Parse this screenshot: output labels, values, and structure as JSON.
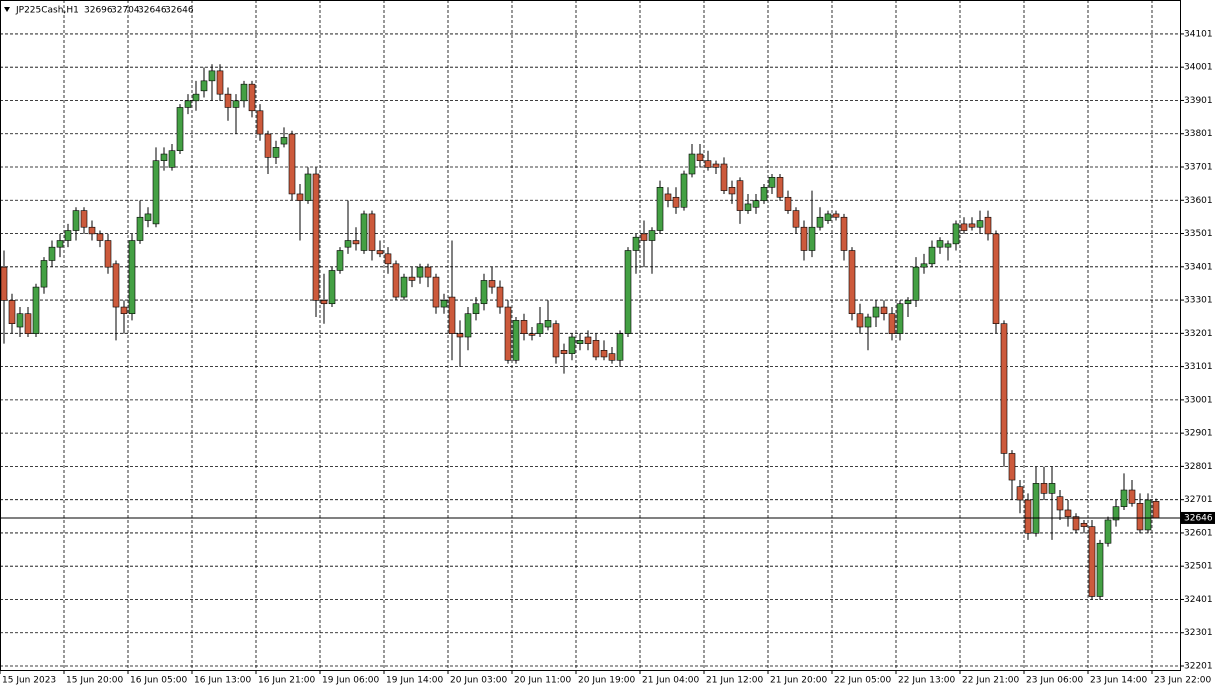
{
  "chart_data": {
    "type": "candlestick",
    "symbol": "JP225Cash,H1",
    "up_color": "#44a044",
    "down_color": "#cc5a3c",
    "wick_color": "#000000",
    "grid": true,
    "ylim": [
      32189,
      34203
    ],
    "yticks": [
      32201,
      32301,
      32401,
      32501,
      32601,
      32701,
      32801,
      32901,
      33001,
      33101,
      33201,
      33301,
      33401,
      33501,
      33601,
      33701,
      33801,
      33901,
      34001,
      34101
    ],
    "xticks": [
      {
        "value": 0,
        "label": "15 Jun 2023"
      },
      {
        "value": 8,
        "label": "15 Jun 20:00"
      },
      {
        "value": 16,
        "label": "16 Jun 05:00"
      },
      {
        "value": 24,
        "label": "16 Jun 13:00"
      },
      {
        "value": 32,
        "label": "16 Jun 21:00"
      },
      {
        "value": 40,
        "label": "19 Jun 06:00"
      },
      {
        "value": 48,
        "label": "19 Jun 14:00"
      },
      {
        "value": 56,
        "label": "20 Jun 03:00"
      },
      {
        "value": 64,
        "label": "20 Jun 11:00"
      },
      {
        "value": 72,
        "label": "20 Jun 19:00"
      },
      {
        "value": 80,
        "label": "21 Jun 04:00"
      },
      {
        "value": 88,
        "label": "21 Jun 12:00"
      },
      {
        "value": 96,
        "label": "21 Jun 20:00"
      },
      {
        "value": 104,
        "label": "22 Jun 05:00"
      },
      {
        "value": 112,
        "label": "22 Jun 13:00"
      },
      {
        "value": 120,
        "label": "22 Jun 21:00"
      },
      {
        "value": 128,
        "label": "23 Jun 06:00"
      },
      {
        "value": 136,
        "label": "23 Jun 14:00"
      },
      {
        "value": 144,
        "label": "23 Jun 22:00"
      }
    ],
    "candles": [
      [
        33400,
        33450,
        33170,
        33300
      ],
      [
        33300,
        33320,
        33200,
        33230
      ],
      [
        33220,
        33280,
        33190,
        33260
      ],
      [
        33260,
        33280,
        33190,
        33200
      ],
      [
        33200,
        33350,
        33190,
        33340
      ],
      [
        33340,
        33430,
        33320,
        33420
      ],
      [
        33420,
        33480,
        33400,
        33460
      ],
      [
        33460,
        33500,
        33430,
        33480
      ],
      [
        33480,
        33530,
        33460,
        33510
      ],
      [
        33510,
        33580,
        33480,
        33570
      ],
      [
        33570,
        33580,
        33500,
        33520
      ],
      [
        33520,
        33540,
        33480,
        33500
      ],
      [
        33500,
        33510,
        33460,
        33480
      ],
      [
        33480,
        33500,
        33380,
        33400
      ],
      [
        33410,
        33420,
        33180,
        33280
      ],
      [
        33280,
        33300,
        33200,
        33260
      ],
      [
        33260,
        33500,
        33240,
        33480
      ],
      [
        33480,
        33600,
        33470,
        33550
      ],
      [
        33540,
        33580,
        33520,
        33560
      ],
      [
        33530,
        33760,
        33520,
        33720
      ],
      [
        33720,
        33760,
        33690,
        33740
      ],
      [
        33700,
        33770,
        33690,
        33750
      ],
      [
        33750,
        33890,
        33740,
        33880
      ],
      [
        33880,
        33920,
        33860,
        33900
      ],
      [
        33900,
        33960,
        33870,
        33920
      ],
      [
        33930,
        34000,
        33910,
        33960
      ],
      [
        33960,
        34010,
        33900,
        33990
      ],
      [
        33990,
        34010,
        33900,
        33920
      ],
      [
        33920,
        33940,
        33840,
        33880
      ],
      [
        33880,
        33920,
        33800,
        33900
      ],
      [
        33900,
        33960,
        33880,
        33950
      ],
      [
        33950,
        33960,
        33850,
        33870
      ],
      [
        33870,
        33890,
        33780,
        33800
      ],
      [
        33800,
        33810,
        33680,
        33730
      ],
      [
        33730,
        33780,
        33710,
        33760
      ],
      [
        33770,
        33820,
        33760,
        33790
      ],
      [
        33800,
        33810,
        33600,
        33620
      ],
      [
        33620,
        33650,
        33480,
        33600
      ],
      [
        33600,
        33700,
        33590,
        33680
      ],
      [
        33680,
        33700,
        33250,
        33300
      ],
      [
        33300,
        33380,
        33230,
        33290
      ],
      [
        33290,
        33400,
        33280,
        33390
      ],
      [
        33390,
        33460,
        33380,
        33450
      ],
      [
        33460,
        33600,
        33440,
        33480
      ],
      [
        33480,
        33520,
        33450,
        33470
      ],
      [
        33450,
        33570,
        33440,
        33560
      ],
      [
        33560,
        33570,
        33420,
        33450
      ],
      [
        33450,
        33480,
        33430,
        33440
      ],
      [
        33440,
        33460,
        33380,
        33410
      ],
      [
        33410,
        33420,
        33300,
        33310
      ],
      [
        33310,
        33380,
        33300,
        33370
      ],
      [
        33370,
        33400,
        33340,
        33360
      ],
      [
        33370,
        33410,
        33350,
        33400
      ],
      [
        33400,
        33410,
        33340,
        33370
      ],
      [
        33370,
        33380,
        33260,
        33280
      ],
      [
        33280,
        33320,
        33260,
        33300
      ],
      [
        33310,
        33480,
        33120,
        33200
      ],
      [
        33200,
        33240,
        33100,
        33190
      ],
      [
        33190,
        33280,
        33150,
        33260
      ],
      [
        33260,
        33310,
        33240,
        33290
      ],
      [
        33290,
        33380,
        33270,
        33360
      ],
      [
        33360,
        33400,
        33320,
        33340
      ],
      [
        33340,
        33360,
        33260,
        33280
      ],
      [
        33280,
        33300,
        33110,
        33120
      ],
      [
        33120,
        33250,
        33110,
        33240
      ],
      [
        33240,
        33260,
        33180,
        33200
      ],
      [
        33200,
        33220,
        33180,
        33195
      ],
      [
        33200,
        33280,
        33190,
        33230
      ],
      [
        33220,
        33300,
        33210,
        33240
      ],
      [
        33230,
        33240,
        33110,
        33130
      ],
      [
        33150,
        33170,
        33080,
        33140
      ],
      [
        33140,
        33200,
        33120,
        33190
      ],
      [
        33170,
        33200,
        33150,
        33180
      ],
      [
        33190,
        33210,
        33150,
        33170
      ],
      [
        33180,
        33200,
        33120,
        33130
      ],
      [
        33150,
        33180,
        33120,
        33130
      ],
      [
        33140,
        33160,
        33110,
        33120
      ],
      [
        33120,
        33210,
        33100,
        33200
      ],
      [
        33200,
        33460,
        33190,
        33450
      ],
      [
        33450,
        33500,
        33380,
        33490
      ],
      [
        33500,
        33540,
        33400,
        33480
      ],
      [
        33480,
        33520,
        33380,
        33510
      ],
      [
        33510,
        33660,
        33500,
        33640
      ],
      [
        33620,
        33640,
        33580,
        33600
      ],
      [
        33610,
        33640,
        33560,
        33580
      ],
      [
        33580,
        33690,
        33570,
        33680
      ],
      [
        33680,
        33770,
        33670,
        33740
      ],
      [
        33740,
        33770,
        33700,
        33720
      ],
      [
        33720,
        33750,
        33690,
        33700
      ],
      [
        33710,
        33720,
        33680,
        33700
      ],
      [
        33710,
        33730,
        33620,
        33630
      ],
      [
        33640,
        33660,
        33590,
        33620
      ],
      [
        33660,
        33670,
        33530,
        33570
      ],
      [
        33570,
        33620,
        33560,
        33590
      ],
      [
        33580,
        33620,
        33560,
        33600
      ],
      [
        33600,
        33650,
        33590,
        33640
      ],
      [
        33640,
        33680,
        33620,
        33670
      ],
      [
        33670,
        33680,
        33600,
        33610
      ],
      [
        33610,
        33630,
        33560,
        33570
      ],
      [
        33570,
        33580,
        33500,
        33520
      ],
      [
        33520,
        33540,
        33420,
        33450
      ],
      [
        33450,
        33630,
        33430,
        33520
      ],
      [
        33520,
        33580,
        33510,
        33550
      ],
      [
        33540,
        33570,
        33530,
        33560
      ],
      [
        33560,
        33570,
        33540,
        33550
      ],
      [
        33550,
        33560,
        33420,
        33450
      ],
      [
        33450,
        33460,
        33240,
        33260
      ],
      [
        33260,
        33290,
        33200,
        33220
      ],
      [
        33220,
        33260,
        33150,
        33250
      ],
      [
        33250,
        33300,
        33220,
        33280
      ],
      [
        33280,
        33300,
        33240,
        33260
      ],
      [
        33260,
        33280,
        33180,
        33200
      ],
      [
        33200,
        33300,
        33180,
        33290
      ],
      [
        33290,
        33310,
        33250,
        33300
      ],
      [
        33300,
        33430,
        33280,
        33400
      ],
      [
        33400,
        33440,
        33380,
        33410
      ],
      [
        33410,
        33480,
        33400,
        33460
      ],
      [
        33460,
        33490,
        33440,
        33480
      ],
      [
        33460,
        33480,
        33420,
        33470
      ],
      [
        33470,
        33540,
        33450,
        33530
      ],
      [
        33530,
        33550,
        33500,
        33510
      ],
      [
        33530,
        33550,
        33510,
        33520
      ],
      [
        33520,
        33570,
        33500,
        33540
      ],
      [
        33550,
        33570,
        33480,
        33500
      ],
      [
        33500,
        33510,
        33200,
        33230
      ],
      [
        33230,
        33240,
        32800,
        32840
      ],
      [
        32840,
        32850,
        32700,
        32760
      ],
      [
        32740,
        32760,
        32660,
        32700
      ],
      [
        32700,
        32720,
        32580,
        32600
      ],
      [
        32600,
        32800,
        32590,
        32750
      ],
      [
        32750,
        32800,
        32700,
        32720
      ],
      [
        32720,
        32800,
        32580,
        32750
      ],
      [
        32710,
        32730,
        32640,
        32670
      ],
      [
        32670,
        32700,
        32620,
        32650
      ],
      [
        32650,
        32660,
        32600,
        32610
      ],
      [
        32630,
        32640,
        32600,
        32620
      ],
      [
        32620,
        32640,
        32400,
        32410
      ],
      [
        32410,
        32580,
        32400,
        32570
      ],
      [
        32570,
        32650,
        32560,
        32640
      ],
      [
        32640,
        32700,
        32620,
        32680
      ],
      [
        32680,
        32780,
        32670,
        32730
      ],
      [
        32730,
        32760,
        32680,
        32690
      ],
      [
        32690,
        32720,
        32600,
        32610
      ],
      [
        32610,
        32720,
        32600,
        32700
      ],
      [
        32696,
        32704,
        32646,
        32646
      ]
    ]
  }
}
